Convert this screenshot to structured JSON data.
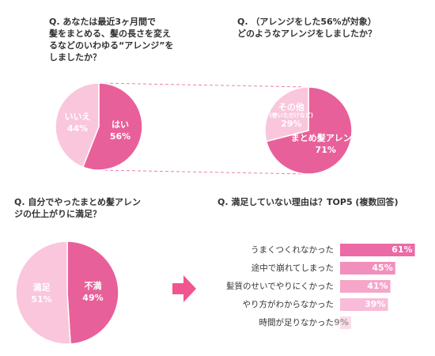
{
  "chart_data": [
    {
      "type": "pie",
      "title": [
        "Q. あなたは最近3ヶ月間で",
        "髪をまとめる、髪の長さを変え",
        "るなどのいわゆる“アレンジ”を",
        "しましたか？"
      ],
      "categories": [
        "はい",
        "いいえ"
      ],
      "values": [
        56,
        44
      ],
      "value_labels": [
        "56%",
        "44%"
      ],
      "colors": [
        "#e8609a",
        "#f9c6dc"
      ]
    },
    {
      "type": "pie",
      "title": [
        "Q. （アレンジをした56%が対象）",
        "どのようなアレンジをしましたか？"
      ],
      "categories": [
        "まとめ髪アレンジ",
        "その他"
      ],
      "category_notes": [
        null,
        "(巻いただけなど)"
      ],
      "values": [
        71,
        29
      ],
      "value_labels": [
        "71%",
        "29%"
      ],
      "colors": [
        "#e8609a",
        "#f9c6dc"
      ]
    },
    {
      "type": "pie",
      "title": [
        "Q. 自分でやったまとめ髪アレン",
        "ジの仕上がりに満足？"
      ],
      "categories": [
        "不満",
        "満足"
      ],
      "values": [
        49,
        51
      ],
      "value_labels": [
        "49%",
        "51%"
      ],
      "colors": [
        "#e8609a",
        "#f9c6dc"
      ]
    },
    {
      "type": "barh",
      "title": [
        "Q. 満足していない理由は？TOP5 (複数回答)"
      ],
      "categories": [
        "うまくつくれなかった",
        "途中で崩れてしまった",
        "髪質のせいでやりにくかった",
        "やり方がわからなかった",
        "時間が足りなかった"
      ],
      "values": [
        61,
        45,
        41,
        39,
        9
      ],
      "value_labels": [
        "61%",
        "45%",
        "41%",
        "39%",
        "9%"
      ],
      "colors": [
        "#ec6aa5",
        "#f290bd",
        "#f5a6c9",
        "#f8bcd8",
        "#fbdce9"
      ]
    }
  ]
}
